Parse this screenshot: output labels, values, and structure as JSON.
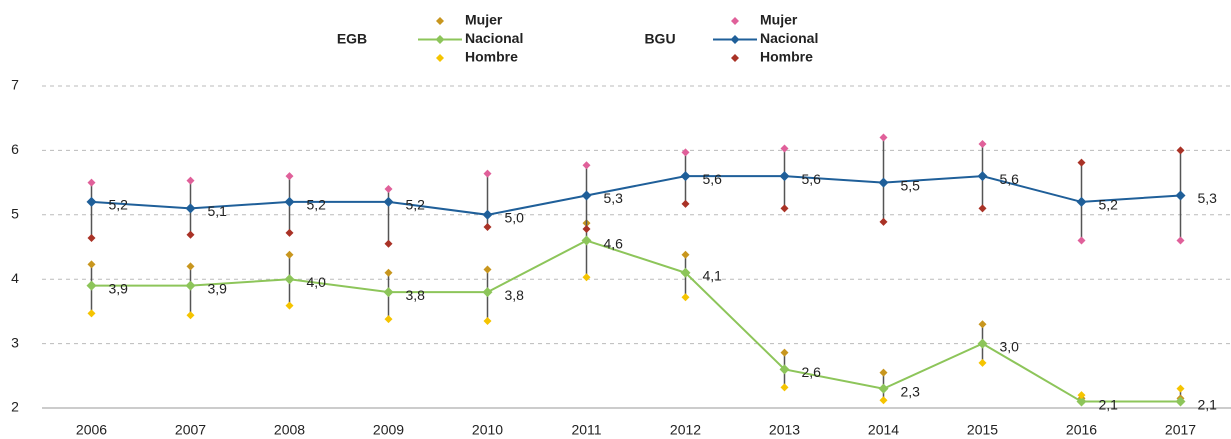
{
  "chart_data": {
    "type": "line",
    "categories": [
      "2006",
      "2007",
      "2008",
      "2009",
      "2010",
      "2011",
      "2012",
      "2013",
      "2014",
      "2015",
      "2016",
      "2017"
    ],
    "ylim": [
      2,
      7
    ],
    "yticks": [
      2,
      3,
      4,
      5,
      6,
      7
    ],
    "grid": true,
    "groups": [
      {
        "name": "EGB",
        "series": [
          {
            "name": "Mujer",
            "color": "#c8961e",
            "marker": "diamond",
            "values": [
              4.23,
              4.2,
              4.38,
              4.1,
              4.15,
              4.87,
              4.38,
              2.86,
              2.55,
              3.3,
              2.15,
              2.15
            ]
          },
          {
            "name": "Nacional",
            "color": "#8dc55a",
            "marker": "line",
            "values": [
              3.9,
              3.9,
              4.0,
              3.8,
              3.8,
              4.6,
              4.1,
              2.6,
              2.3,
              3.0,
              2.1,
              2.1
            ],
            "value_labels": [
              "3,9",
              "3,9",
              "4,0",
              "3,8",
              "3,8",
              "4,6",
              "4,1",
              "2,6",
              "2,3",
              "3,0",
              "2,1",
              "2,1"
            ]
          },
          {
            "name": "Hombre",
            "color": "#f5c400",
            "marker": "diamond",
            "values": [
              3.47,
              3.44,
              3.59,
              3.38,
              3.35,
              4.03,
              3.72,
              2.32,
              2.12,
              2.7,
              2.2,
              2.3
            ]
          }
        ]
      },
      {
        "name": "BGU",
        "series": [
          {
            "name": "Mujer",
            "color": "#e0609a",
            "marker": "diamond",
            "values": [
              5.5,
              5.53,
              5.6,
              5.4,
              5.64,
              5.77,
              5.97,
              6.03,
              6.2,
              6.1,
              4.6,
              4.6
            ]
          },
          {
            "name": "Nacional",
            "color": "#1f5f99",
            "marker": "line",
            "values": [
              5.2,
              5.1,
              5.2,
              5.2,
              5.0,
              5.3,
              5.6,
              5.6,
              5.5,
              5.6,
              5.2,
              5.3
            ],
            "value_labels": [
              "5,2",
              "5,1",
              "5,2",
              "5,2",
              "5,0",
              "5,3",
              "5,6",
              "5,6",
              "5,5",
              "5,6",
              "5,2",
              "5,3"
            ]
          },
          {
            "name": "Hombre",
            "color": "#a93226",
            "marker": "diamond",
            "values": [
              4.64,
              4.69,
              4.72,
              4.55,
              4.81,
              4.78,
              5.17,
              5.1,
              4.89,
              5.1,
              5.81,
              6.0
            ]
          }
        ]
      }
    ]
  }
}
